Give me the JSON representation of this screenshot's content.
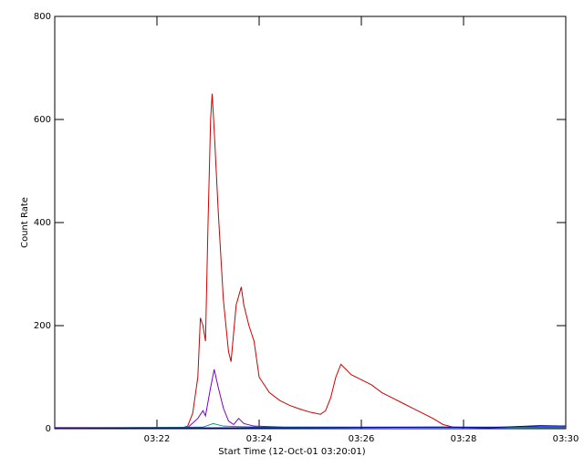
{
  "chart_data": {
    "type": "line",
    "xlabel": "Start Time (12-Oct-01 03:20:01)",
    "ylabel": "Count Rate",
    "xlim": [
      0,
      10
    ],
    "xticks": [
      {
        "value": 2,
        "label": "03:22"
      },
      {
        "value": 4,
        "label": "03:24"
      },
      {
        "value": 6,
        "label": "03:26"
      },
      {
        "value": 8,
        "label": "03:28"
      },
      {
        "value": 10,
        "label": "03:30"
      }
    ],
    "ylim": [
      0,
      800
    ],
    "yticks": [
      0,
      200,
      400,
      600,
      800
    ],
    "series": [
      {
        "color": "#cc0000",
        "x": [
          0,
          2.5,
          2.6,
          2.7,
          2.8,
          2.85,
          2.9,
          2.95,
          3.0,
          3.05,
          3.08,
          3.12,
          3.2,
          3.3,
          3.4,
          3.45,
          3.55,
          3.65,
          3.7,
          3.8,
          3.9,
          4.0,
          4.2,
          4.4,
          4.6,
          4.8,
          5.0,
          5.2,
          5.3,
          5.4,
          5.5,
          5.6,
          5.7,
          5.8,
          6.0,
          6.2,
          6.4,
          6.6,
          6.8,
          7.0,
          7.2,
          7.4,
          7.6,
          7.8,
          8.5,
          9.2,
          9.5,
          10
        ],
        "values": [
          2,
          2,
          5,
          30,
          100,
          215,
          200,
          170,
          400,
          600,
          650,
          580,
          420,
          250,
          150,
          130,
          240,
          275,
          240,
          200,
          170,
          100,
          70,
          55,
          45,
          38,
          32,
          28,
          35,
          60,
          100,
          125,
          115,
          105,
          95,
          85,
          70,
          60,
          50,
          40,
          30,
          20,
          8,
          3,
          2,
          3,
          5,
          5
        ]
      },
      {
        "color": "#7700cc",
        "x": [
          0,
          2.6,
          2.8,
          2.9,
          2.95,
          3.05,
          3.12,
          3.2,
          3.3,
          3.4,
          3.5,
          3.6,
          3.7,
          3.9,
          4.5,
          10
        ],
        "values": [
          2,
          2,
          20,
          35,
          25,
          80,
          115,
          80,
          40,
          15,
          8,
          20,
          10,
          5,
          3,
          3
        ]
      },
      {
        "color": "#009988",
        "x": [
          0,
          2.9,
          3.1,
          3.3,
          4,
          10
        ],
        "values": [
          1,
          3,
          10,
          5,
          3,
          2
        ]
      },
      {
        "color": "#0000cc",
        "x": [
          0,
          5,
          7.6,
          8.5,
          9.5,
          10
        ],
        "values": [
          1,
          2,
          3,
          2,
          6,
          5
        ]
      }
    ]
  }
}
